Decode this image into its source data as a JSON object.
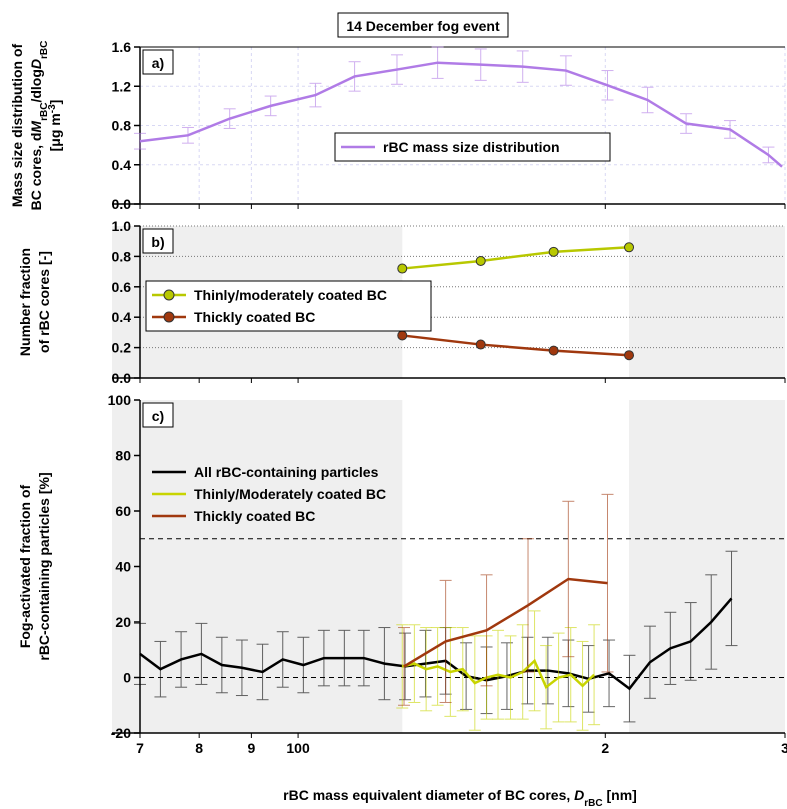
{
  "chart_data": [
    {
      "type": "line",
      "title": "14 December fog event",
      "panel_label": "a)",
      "ylabel": [
        "Mass size distribution of",
        [
          "BC cores, d",
          {
            "text": "M",
            "style": "italic"
          },
          {
            "text": "rBC",
            "style": "sub"
          },
          "/dlog",
          {
            "text": "D",
            "style": "italic"
          },
          {
            "text": "rBC",
            "style": "sub"
          }
        ],
        [
          "[μg m",
          {
            "text": "-3",
            "style": "sup"
          },
          "]"
        ]
      ],
      "xlim": [
        70,
        300
      ],
      "log_x": true,
      "ylim": [
        0,
        1.6
      ],
      "yticks": [
        {
          "value": 0,
          "label": "0.0"
        },
        0.4,
        0.8,
        1.2,
        1.6
      ],
      "grid": true,
      "legend_position": "center",
      "series": [
        {
          "name": "rBC mass size distribution",
          "color": "#b07be6",
          "x": [
            70,
            78,
            85.7,
            94,
            104,
            113.6,
            125,
            137,
            151,
            166,
            183,
            201,
            220,
            240,
            265,
            289,
            298
          ],
          "values": [
            0.64,
            0.7,
            0.87,
            1.0,
            1.11,
            1.3,
            1.37,
            1.44,
            1.42,
            1.4,
            1.36,
            1.21,
            1.06,
            0.82,
            0.76,
            0.5,
            0.38
          ],
          "errors": [
            0.08,
            0.08,
            0.1,
            0.1,
            0.12,
            0.15,
            0.15,
            0.16,
            0.16,
            0.16,
            0.15,
            0.15,
            0.13,
            0.1,
            0.09,
            0.08,
            null
          ]
        }
      ]
    },
    {
      "type": "line",
      "panel_label": "b)",
      "ylabel": [
        "Number fraction",
        "of rBC cores [-]"
      ],
      "xlim": [
        70,
        300
      ],
      "log_x": true,
      "ylim": [
        0,
        1
      ],
      "yticks": [
        {
          "value": 0,
          "label": "0.0"
        },
        0.2,
        0.4,
        0.6,
        0.8,
        {
          "value": 1,
          "label": "1.0"
        }
      ],
      "grid": true,
      "unshaded_range": [
        126.5,
        211
      ],
      "legend_position": "left",
      "series": [
        {
          "name": "Thinly/moderately coated BC",
          "color": "#b8c800",
          "marker": true,
          "x": [
            126.5,
            151,
            178,
            211
          ],
          "values": [
            0.72,
            0.77,
            0.83,
            0.86
          ]
        },
        {
          "name": "Thickly coated BC",
          "color": "#a0380e",
          "marker": true,
          "x": [
            126.5,
            151,
            178,
            211
          ],
          "values": [
            0.28,
            0.22,
            0.18,
            0.15
          ]
        }
      ]
    },
    {
      "type": "line",
      "panel_label": "c)",
      "ylabel": [
        "Fog-activated fraction of",
        "rBC-containing particles [%]"
      ],
      "xlabel": [
        "rBC mass equivalent diameter of BC cores, ",
        {
          "text": "D",
          "style": "italic"
        },
        {
          "text": "rBC",
          "style": "sub"
        },
        " [nm]"
      ],
      "xlim": [
        70,
        300
      ],
      "log_x": true,
      "ylim": [
        -20,
        100
      ],
      "xticks": [
        {
          "value": 70,
          "label": "7"
        },
        {
          "value": 80,
          "label": "8"
        },
        {
          "value": 90,
          "label": "9"
        },
        100,
        {
          "value": 200,
          "label": "2"
        },
        {
          "value": 300,
          "label": "3"
        }
      ],
      "yticks": [
        -20,
        0,
        20,
        40,
        60,
        80,
        100
      ],
      "hlines": [
        50,
        0
      ],
      "unshaded_range": [
        126.5,
        211
      ],
      "legend_position": "upper left",
      "series": [
        {
          "name": "All rBC-containing particles",
          "color": "#000000",
          "x": [
            70,
            73.3,
            76.8,
            80.4,
            84.2,
            88.1,
            92.3,
            96.6,
            101.2,
            106,
            111,
            116,
            121.5,
            127.3,
            133.3,
            139.5,
            146.1,
            153,
            160.2,
            167.8,
            175.7,
            184,
            192.6,
            201.7,
            211.2,
            221.2,
            231.6,
            242.5,
            254,
            265.9
          ],
          "values": [
            8.5,
            3,
            6.5,
            8.5,
            4.5,
            3.5,
            2,
            6.5,
            4.5,
            7,
            7,
            7,
            5,
            4,
            5,
            6,
            0.5,
            -1,
            0.5,
            2.5,
            2.5,
            1.5,
            -0.5,
            1.5,
            -4,
            5.5,
            10.5,
            13,
            20,
            28.5
          ],
          "errors": [
            11,
            10,
            10,
            11,
            10,
            10,
            10,
            10,
            10,
            10,
            10,
            10,
            13,
            12,
            12,
            12,
            12,
            12,
            12,
            12,
            12,
            12,
            12,
            12,
            12,
            13,
            13,
            14,
            17,
            17
          ]
        },
        {
          "name": "Thinly/Moderately coated BC",
          "color": "#c8d400",
          "x": [
            126.5,
            130,
            133.5,
            137,
            141,
            145,
            149,
            153,
            157,
            161.5,
            166,
            170.5,
            175,
            180,
            185,
            190,
            195
          ],
          "values": [
            4,
            5,
            3,
            4,
            2,
            3,
            -2,
            0,
            1,
            0,
            2,
            6,
            -3.5,
            0,
            1,
            -3,
            1
          ],
          "errors": [
            15,
            14,
            15,
            14,
            16,
            15,
            17,
            15,
            16,
            15,
            17,
            18,
            15,
            16,
            17,
            16,
            18
          ]
        },
        {
          "name": "Thickly coated BC",
          "color": "#a0380e",
          "x": [
            127,
            139.5,
            153,
            168,
            184,
            201
          ],
          "values": [
            4,
            13,
            17,
            26,
            35.5,
            34
          ],
          "errors": [
            14,
            22,
            20,
            24,
            28,
            32
          ]
        }
      ]
    }
  ]
}
